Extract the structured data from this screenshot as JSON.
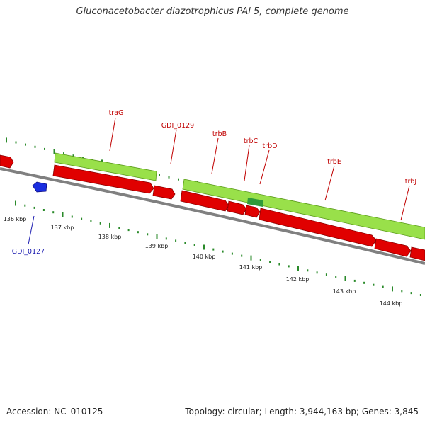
{
  "title": "Gluconacetobacter diazotrophicus PAl 5, complete genome",
  "footer": {
    "accession": "Accession: NC_010125",
    "summary": "Topology: circular; Length: 3,944,163 bp; Genes: 3,845"
  },
  "colors": {
    "forward_gene": "#99e04a",
    "reverse_gene": "#e00000",
    "highlight_gene": "#2e9a3a",
    "small_gene": "#1a2ee0",
    "backbone": "#808080",
    "tick": "#2a8a2a",
    "label_red": "#c00000",
    "label_blue": "#1a1ab0"
  },
  "scale": {
    "labels": [
      "136 kbp",
      "137 kbp",
      "138 kbp",
      "139 kbp",
      "140 kbp",
      "141 kbp",
      "142 kbp",
      "143 kbp",
      "144 kbp"
    ]
  },
  "gene_labels": [
    {
      "name": "traG",
      "color": "red"
    },
    {
      "name": "GDI_0129",
      "color": "red"
    },
    {
      "name": "trbB",
      "color": "red"
    },
    {
      "name": "trbC",
      "color": "red"
    },
    {
      "name": "trbD",
      "color": "red"
    },
    {
      "name": "trbE",
      "color": "red"
    },
    {
      "name": "trbJ",
      "color": "red"
    },
    {
      "name": "GDI_0127",
      "color": "blue"
    }
  ]
}
